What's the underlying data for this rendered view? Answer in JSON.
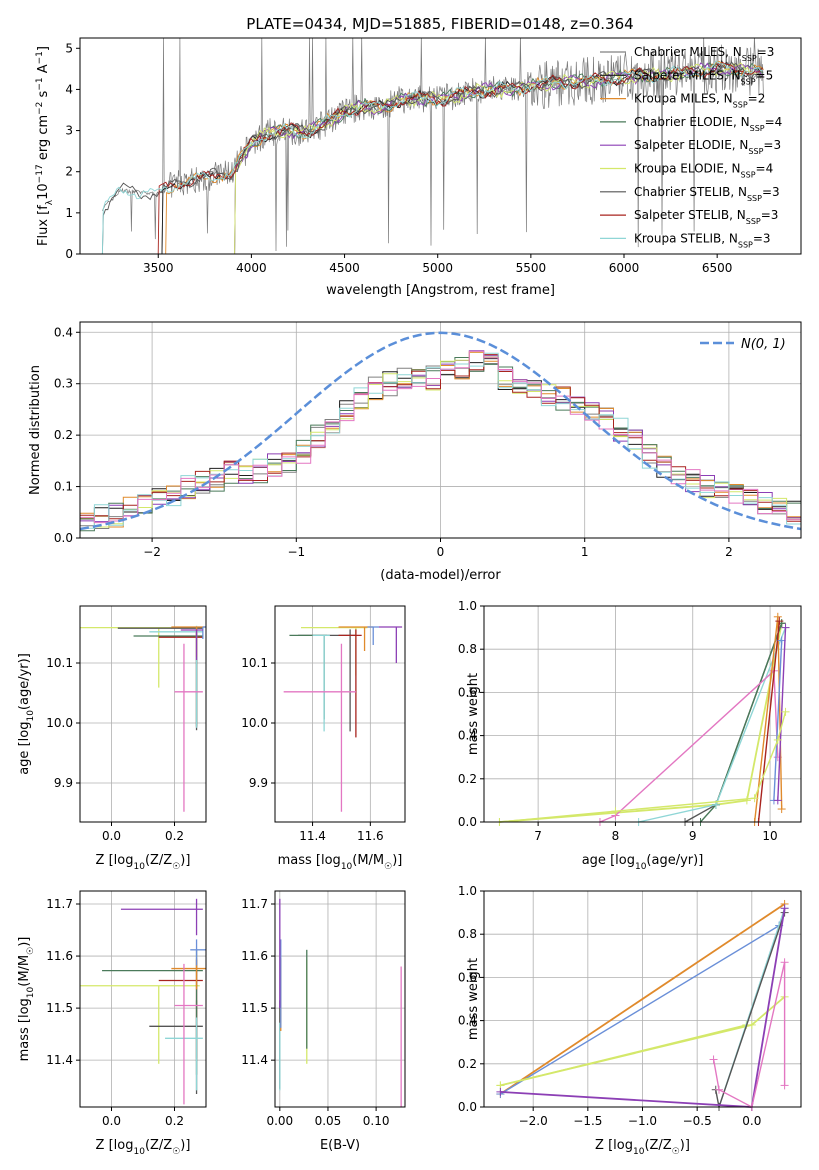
{
  "figure": {
    "title": "PLATE=0434, MJD=51885, FIBERID=0148, z=0.364"
  },
  "colors": {
    "Chabrier MILES": "#808080",
    "Salpeter MILES": "#1f1f1f",
    "Kroupa MILES": "#e08a2c",
    "Chabrier ELODIE": "#4a7a5a",
    "Salpeter ELODIE": "#8c3fb5",
    "Kroupa ELODIE": "#d4e86a",
    "Chabrier STELIB": "#555555",
    "Salpeter STELIB": "#a8241f",
    "Kroupa STELIB": "#8fd6d6",
    "pink": "#e377c2",
    "blue": "#6a8fd8",
    "gauss": "#5b8fd9"
  },
  "chart_data": [
    {
      "id": "spectrum",
      "type": "line",
      "xlabel": "wavelength [Angstrom, rest frame]",
      "ylabel_parts": [
        "Flux [f",
        "λ",
        "10",
        "−17",
        " erg cm",
        "−2",
        " s",
        "−1",
        " A",
        "−1",
        "]"
      ],
      "xlim": [
        3080,
        6950
      ],
      "ylim": [
        0,
        5.25
      ],
      "xticks": [
        3500,
        4000,
        4500,
        5000,
        5500,
        6000,
        6500
      ],
      "yticks": [
        0,
        1,
        2,
        3,
        4,
        5
      ],
      "grid": false,
      "legend_position": "upper right",
      "continuum": {
        "x": [
          3200,
          3300,
          3400,
          3500,
          3600,
          3700,
          3800,
          3900,
          4000,
          4100,
          4200,
          4300,
          4400,
          4500,
          4600,
          4700,
          4800,
          4900,
          5000,
          5100,
          5200,
          5300,
          5400,
          5500,
          5600,
          5700,
          5800,
          5900,
          6000,
          6100,
          6200,
          6300,
          6400,
          6500,
          6600,
          6750
        ],
        "y": [
          1.1,
          1.55,
          1.5,
          1.45,
          1.75,
          1.8,
          1.9,
          2.0,
          2.7,
          2.95,
          3.0,
          2.95,
          3.2,
          3.45,
          3.6,
          3.55,
          3.75,
          3.8,
          3.75,
          3.85,
          3.95,
          4.0,
          4.0,
          4.1,
          4.15,
          4.2,
          4.2,
          4.25,
          4.3,
          4.35,
          4.35,
          4.4,
          4.45,
          4.5,
          4.5,
          4.4
        ]
      },
      "series": [
        {
          "name": "Chabrier MILES, N",
          "n": "3",
          "start": 3520
        },
        {
          "name": "Salpeter MILES, N",
          "n": "5",
          "start": 3520
        },
        {
          "name": "Kroupa MILES, N",
          "n": "2",
          "start": 3540
        },
        {
          "name": "Chabrier ELODIE, N",
          "n": "4",
          "start": 3910
        },
        {
          "name": "Salpeter ELODIE, N",
          "n": "3",
          "start": 3910
        },
        {
          "name": "Kroupa ELODIE, N",
          "n": "4",
          "start": 3910
        },
        {
          "name": "Chabrier STELIB, N",
          "n": "3",
          "start": 3200
        },
        {
          "name": "Salpeter STELIB, N",
          "n": "3",
          "start": 3500
        },
        {
          "name": "Kroupa STELIB, N",
          "n": "3",
          "start": 3200
        }
      ],
      "legend_subscript": "SSP"
    },
    {
      "id": "residuals",
      "type": "line",
      "xlabel": "(data-model)/error",
      "ylabel": "Normed distribution",
      "xlim": [
        -2.5,
        2.5
      ],
      "ylim": [
        0,
        0.42
      ],
      "xticks": [
        -2,
        -1,
        0,
        1,
        2
      ],
      "yticks": [
        0.0,
        0.1,
        0.2,
        0.3,
        0.4
      ],
      "grid": true,
      "legend_position": "upper right",
      "legend_label": "N(0, 1)",
      "hist_bins": {
        "start": -2.5,
        "width": 0.1,
        "count": 50
      },
      "hist_profile": [
        0.035,
        0.04,
        0.045,
        0.055,
        0.06,
        0.075,
        0.085,
        0.1,
        0.11,
        0.115,
        0.125,
        0.12,
        0.13,
        0.14,
        0.15,
        0.17,
        0.195,
        0.215,
        0.25,
        0.27,
        0.29,
        0.3,
        0.31,
        0.305,
        0.31,
        0.32,
        0.33,
        0.34,
        0.335,
        0.31,
        0.3,
        0.29,
        0.28,
        0.27,
        0.26,
        0.25,
        0.23,
        0.21,
        0.19,
        0.16,
        0.14,
        0.12,
        0.11,
        0.1,
        0.09,
        0.085,
        0.075,
        0.07,
        0.06,
        0.05
      ]
    },
    {
      "id": "age-vs-Z",
      "type": "scatter",
      "xlabel_parts": [
        "Z [log",
        "10",
        "(Z/Z",
        "☉",
        ")]"
      ],
      "ylabel_parts": [
        "age  [log",
        "10",
        "(age/yr)]"
      ],
      "xlim": [
        -0.1,
        0.3
      ],
      "ylim": [
        9.835,
        10.195
      ],
      "xticks": [
        0.0,
        0.2
      ],
      "yticks": [
        9.9,
        10.0,
        10.1
      ],
      "grid": true
    },
    {
      "id": "age-vs-mass",
      "type": "scatter",
      "xlabel_parts": [
        "mass [log",
        "10",
        "(M/M",
        "☉",
        ")]"
      ],
      "xlim": [
        11.27,
        11.72
      ],
      "ylim": [
        9.835,
        10.195
      ],
      "xticks": [
        11.4,
        11.6
      ],
      "yticks": [
        9.9,
        10.0,
        10.1
      ],
      "grid": true
    },
    {
      "id": "weight-vs-age",
      "type": "line",
      "xlabel_parts": [
        "age  [log",
        "10",
        "(age/yr)]"
      ],
      "ylabel": "mass weight",
      "xlim": [
        6.3,
        10.4
      ],
      "ylim": [
        0,
        1.0
      ],
      "xticks": [
        7,
        8,
        9,
        10
      ],
      "yticks": [
        0.0,
        0.2,
        0.4,
        0.6,
        0.8,
        1.0
      ],
      "grid": true
    },
    {
      "id": "mass-vs-Z",
      "type": "scatter",
      "xlabel_parts": [
        "Z [log",
        "10",
        "(Z/Z",
        "☉",
        ")]"
      ],
      "ylabel_parts": [
        "mass [log",
        "10",
        "(M/M",
        "☉",
        ")]"
      ],
      "xlim": [
        -0.1,
        0.3
      ],
      "ylim": [
        11.31,
        11.725
      ],
      "xticks": [
        0.0,
        0.2
      ],
      "yticks": [
        11.4,
        11.5,
        11.6,
        11.7
      ],
      "grid": true
    },
    {
      "id": "mass-vs-ebv",
      "type": "scatter",
      "xlabel": "E(B-V)",
      "xlim": [
        -0.005,
        0.13
      ],
      "ylim": [
        11.31,
        11.725
      ],
      "xticks": [
        0.0,
        0.05,
        0.1
      ],
      "yticks": [
        11.4,
        11.5,
        11.6,
        11.7
      ],
      "grid": true
    },
    {
      "id": "weight-vs-Z",
      "type": "line",
      "xlabel_parts": [
        "Z [log",
        "10",
        "(Z/Z",
        "☉",
        ")]"
      ],
      "ylabel": "mass weight",
      "xlim": [
        -2.45,
        0.45
      ],
      "ylim": [
        0,
        1.0
      ],
      "xticks": [
        -2.0,
        -1.5,
        -1.0,
        -0.5,
        0.0
      ],
      "yticks": [
        0.0,
        0.2,
        0.4,
        0.6,
        0.8,
        1.0
      ],
      "grid": true
    }
  ]
}
